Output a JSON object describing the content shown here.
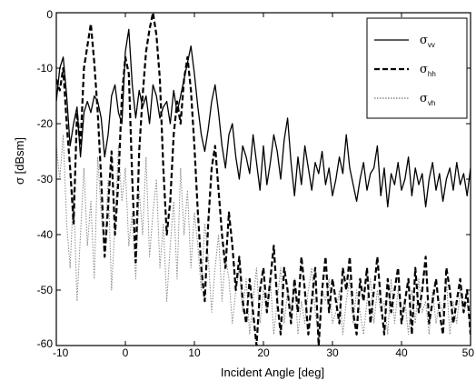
{
  "chart_data": {
    "type": "line",
    "title": "",
    "xlabel": "Incident Angle   [deg]",
    "ylabel": "σ   [dBsm]",
    "xlim": [
      -10,
      50
    ],
    "ylim": [
      -60,
      0
    ],
    "xticks": [
      -10,
      0,
      10,
      20,
      30,
      40,
      50
    ],
    "xtick_labels": [
      "-10",
      "0",
      "10",
      "20",
      "30",
      "40",
      "50"
    ],
    "yticks": [
      0,
      -10,
      -20,
      -30,
      -40,
      -50,
      -60
    ],
    "ytick_labels": [
      "0",
      "-10",
      "-20",
      "-30",
      "-40",
      "-50",
      "-60"
    ],
    "grid": false,
    "legend_position": "top-right",
    "series": [
      {
        "name": "σ_vv",
        "legend_symbol": "σ",
        "legend_sub": "vv",
        "style": "solid",
        "color": "#000000",
        "x": [
          -10,
          -9.5,
          -9,
          -8.5,
          -8,
          -7.5,
          -7,
          -6.5,
          -6,
          -5.5,
          -5,
          -4.5,
          -4,
          -3.5,
          -3,
          -2.5,
          -2,
          -1.5,
          -1,
          -0.5,
          0,
          0.5,
          1,
          1.5,
          2,
          2.5,
          3,
          3.5,
          4,
          4.5,
          5,
          5.5,
          6,
          6.5,
          7,
          7.5,
          8,
          8.5,
          9,
          9.5,
          10,
          10.5,
          11,
          11.5,
          12,
          12.5,
          13,
          13.5,
          14,
          14.5,
          15,
          15.5,
          16,
          16.5,
          17,
          17.5,
          18,
          18.5,
          19,
          19.5,
          20,
          20.5,
          21,
          21.5,
          22,
          22.5,
          23,
          23.5,
          24,
          24.5,
          25,
          25.5,
          26,
          26.5,
          27,
          27.5,
          28,
          28.5,
          29,
          29.5,
          30,
          30.5,
          31,
          31.5,
          32,
          32.5,
          33,
          33.5,
          34,
          34.5,
          35,
          35.5,
          36,
          36.5,
          37,
          37.5,
          38,
          38.5,
          39,
          39.5,
          40,
          40.5,
          41,
          41.5,
          42,
          42.5,
          43,
          43.5,
          44,
          44.5,
          45,
          45.5,
          46,
          46.5,
          47,
          47.5,
          48,
          48.5,
          49,
          49.5,
          50
        ],
        "y": [
          -16,
          -10,
          -8,
          -15,
          -24,
          -20,
          -17,
          -26,
          -18,
          -16,
          -18,
          -15,
          -16,
          -19,
          -26,
          -22,
          -15,
          -13,
          -18,
          -20,
          -7,
          -3,
          -13,
          -19,
          -14,
          -17,
          -15,
          -20,
          -13,
          -15,
          -19,
          -17,
          -16,
          -20,
          -14,
          -18,
          -15,
          -12,
          -9,
          -6,
          -11,
          -17,
          -22,
          -25,
          -21,
          -16,
          -13,
          -18,
          -24,
          -28,
          -22,
          -20,
          -26,
          -30,
          -24,
          -26,
          -29,
          -22,
          -27,
          -32,
          -24,
          -31,
          -27,
          -22,
          -25,
          -30,
          -23,
          -19,
          -27,
          -33,
          -26,
          -31,
          -24,
          -28,
          -32,
          -27,
          -29,
          -25,
          -31,
          -28,
          -33,
          -30,
          -26,
          -29,
          -22,
          -28,
          -31,
          -34,
          -30,
          -27,
          -32,
          -29,
          -28,
          -24,
          -33,
          -28,
          -35,
          -29,
          -31,
          -27,
          -32,
          -30,
          -26,
          -33,
          -28,
          -31,
          -29,
          -35,
          -30,
          -27,
          -32,
          -29,
          -34,
          -30,
          -28,
          -32,
          -27,
          -31,
          -29,
          -33,
          -28
        ]
      },
      {
        "name": "σ_hh",
        "legend_symbol": "σ",
        "legend_sub": "hh",
        "style": "dashed",
        "color": "#000000",
        "x": [
          -10,
          -9.5,
          -9,
          -8.5,
          -8,
          -7.5,
          -7,
          -6.5,
          -6,
          -5.5,
          -5,
          -4.5,
          -4,
          -3.5,
          -3,
          -2.5,
          -2,
          -1.5,
          -1,
          -0.5,
          0,
          0.5,
          1,
          1.5,
          2,
          2.5,
          3,
          3.5,
          4,
          4.5,
          5,
          5.5,
          6,
          6.5,
          7,
          7.5,
          8,
          8.5,
          9,
          9.5,
          10,
          10.5,
          11,
          11.5,
          12,
          12.5,
          13,
          13.5,
          14,
          14.5,
          15,
          15.5,
          16,
          16.5,
          17,
          17.5,
          18,
          18.5,
          19,
          19.5,
          20,
          20.5,
          21,
          21.5,
          22,
          22.5,
          23,
          23.5,
          24,
          24.5,
          25,
          25.5,
          26,
          26.5,
          27,
          27.5,
          28,
          28.5,
          29,
          29.5,
          30,
          30.5,
          31,
          31.5,
          32,
          32.5,
          33,
          33.5,
          34,
          34.5,
          35,
          35.5,
          36,
          36.5,
          37,
          37.5,
          38,
          38.5,
          39,
          39.5,
          40,
          40.5,
          41,
          41.5,
          42,
          42.5,
          43,
          43.5,
          44,
          44.5,
          45,
          45.5,
          46,
          46.5,
          47,
          47.5,
          48,
          48.5,
          49,
          49.5,
          50
        ],
        "y": [
          -12,
          -14,
          -10,
          -20,
          -28,
          -38,
          -18,
          -24,
          -10,
          -6,
          -2,
          -9,
          -18,
          -30,
          -44,
          -35,
          -25,
          -40,
          -30,
          -15,
          -8,
          -11,
          -30,
          -45,
          -25,
          -15,
          -7,
          -3,
          0,
          -4,
          -12,
          -28,
          -40,
          -34,
          -22,
          -16,
          -20,
          -12,
          -8,
          -14,
          -24,
          -36,
          -46,
          -52,
          -38,
          -28,
          -24,
          -32,
          -40,
          -46,
          -36,
          -42,
          -50,
          -44,
          -52,
          -56,
          -48,
          -54,
          -60,
          -50,
          -46,
          -54,
          -48,
          -42,
          -52,
          -58,
          -46,
          -50,
          -56,
          -48,
          -54,
          -44,
          -50,
          -58,
          -52,
          -46,
          -60,
          -50,
          -44,
          -54,
          -48,
          -52,
          -56,
          -46,
          -50,
          -44,
          -54,
          -58,
          -48,
          -52,
          -46,
          -56,
          -50,
          -44,
          -52,
          -58,
          -48,
          -54,
          -50,
          -46,
          -56,
          -52,
          -48,
          -58,
          -46,
          -54,
          -50,
          -44,
          -56,
          -52,
          -48,
          -54,
          -58,
          -46,
          -50,
          -56,
          -52,
          -48,
          -54,
          -50,
          -58
        ]
      },
      {
        "name": "σ_vh",
        "legend_symbol": "σ",
        "legend_sub": "vh",
        "style": "dotted",
        "color": "#888888",
        "x": [
          -10,
          -9.5,
          -9,
          -8.5,
          -8,
          -7.5,
          -7,
          -6.5,
          -6,
          -5.5,
          -5,
          -4.5,
          -4,
          -3.5,
          -3,
          -2.5,
          -2,
          -1.5,
          -1,
          -0.5,
          0,
          0.5,
          1,
          1.5,
          2,
          2.5,
          3,
          3.5,
          4,
          4.5,
          5,
          5.5,
          6,
          6.5,
          7,
          7.5,
          8,
          8.5,
          9,
          9.5,
          10,
          10.5,
          11,
          11.5,
          12,
          12.5,
          13,
          13.5,
          14,
          14.5,
          15,
          15.5,
          16,
          16.5,
          17,
          17.5,
          18,
          18.5,
          19,
          19.5,
          20,
          20.5,
          21,
          21.5,
          22,
          22.5,
          23,
          23.5,
          24,
          24.5,
          25,
          25.5,
          26,
          26.5,
          27,
          27.5,
          28,
          28.5,
          29,
          29.5,
          30,
          30.5,
          31,
          31.5,
          32,
          32.5,
          33,
          33.5,
          34,
          34.5,
          35,
          35.5,
          36,
          36.5,
          37,
          37.5,
          38,
          38.5,
          39,
          39.5,
          40,
          40.5,
          41,
          41.5,
          42,
          42.5,
          43,
          43.5,
          44,
          44.5,
          45,
          45.5,
          46,
          46.5,
          47,
          47.5,
          48,
          48.5,
          49,
          49.5,
          50
        ],
        "y": [
          -24,
          -30,
          -22,
          -38,
          -46,
          -32,
          -52,
          -40,
          -28,
          -42,
          -34,
          -48,
          -26,
          -36,
          -44,
          -30,
          -50,
          -38,
          -24,
          -34,
          -28,
          -42,
          -36,
          -48,
          -32,
          -40,
          -26,
          -44,
          -36,
          -30,
          -46,
          -38,
          -52,
          -42,
          -34,
          -48,
          -28,
          -40,
          -32,
          -46,
          -36,
          -42,
          -50,
          -38,
          -44,
          -54,
          -46,
          -40,
          -52,
          -44,
          -48,
          -56,
          -50,
          -46,
          -54,
          -48,
          -58,
          -52,
          -46,
          -56,
          -50,
          -54,
          -48,
          -58,
          -52,
          -46,
          -56,
          -50,
          -54,
          -48,
          -58,
          -52,
          -56,
          -50,
          -46,
          -54,
          -58,
          -50,
          -52,
          -48,
          -56,
          -54,
          -50,
          -58,
          -52,
          -48,
          -56,
          -50,
          -54,
          -58,
          -52,
          -48,
          -56,
          -50,
          -54,
          -52,
          -58,
          -48,
          -56,
          -50,
          -54,
          -52,
          -58,
          -50,
          -56,
          -48,
          -54,
          -52,
          -58,
          -50,
          -56,
          -52,
          -54,
          -48,
          -58,
          -52,
          -56,
          -50,
          -54,
          -52,
          -58
        ]
      }
    ]
  }
}
